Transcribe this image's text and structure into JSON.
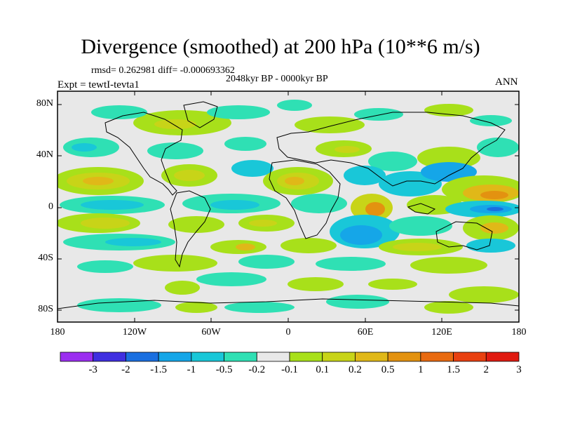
{
  "title": "Divergence (smoothed) at 200 hPa (10**6 m/s)",
  "stats": "rmsd= 0.262981 diff= -0.000693362",
  "period": "2048kyr BP - 0000kyr BP",
  "experiment": "Expt = tewtI-tevta1",
  "season": "ANN",
  "axes": {
    "lat_ticks": [
      "80N",
      "40N",
      "0",
      "40S",
      "80S"
    ],
    "lon_ticks": [
      "180",
      "120W",
      "60W",
      "0",
      "60E",
      "120E",
      "180"
    ]
  },
  "colorbar": {
    "colors": [
      "#9b2ef0",
      "#3f2fe0",
      "#1a6fe0",
      "#15a6e8",
      "#19c7d8",
      "#2fe0b4",
      "#e8e8e8",
      "#a8e01a",
      "#c8d418",
      "#e0b818",
      "#e39210",
      "#e86a10",
      "#e84010",
      "#e01a10"
    ],
    "labels": [
      "-3",
      "-2",
      "-1.5",
      "-1",
      "-0.5",
      "-0.2",
      "-0.1",
      "0.1",
      "0.2",
      "0.5",
      "1",
      "1.5",
      "2",
      "3"
    ]
  }
}
